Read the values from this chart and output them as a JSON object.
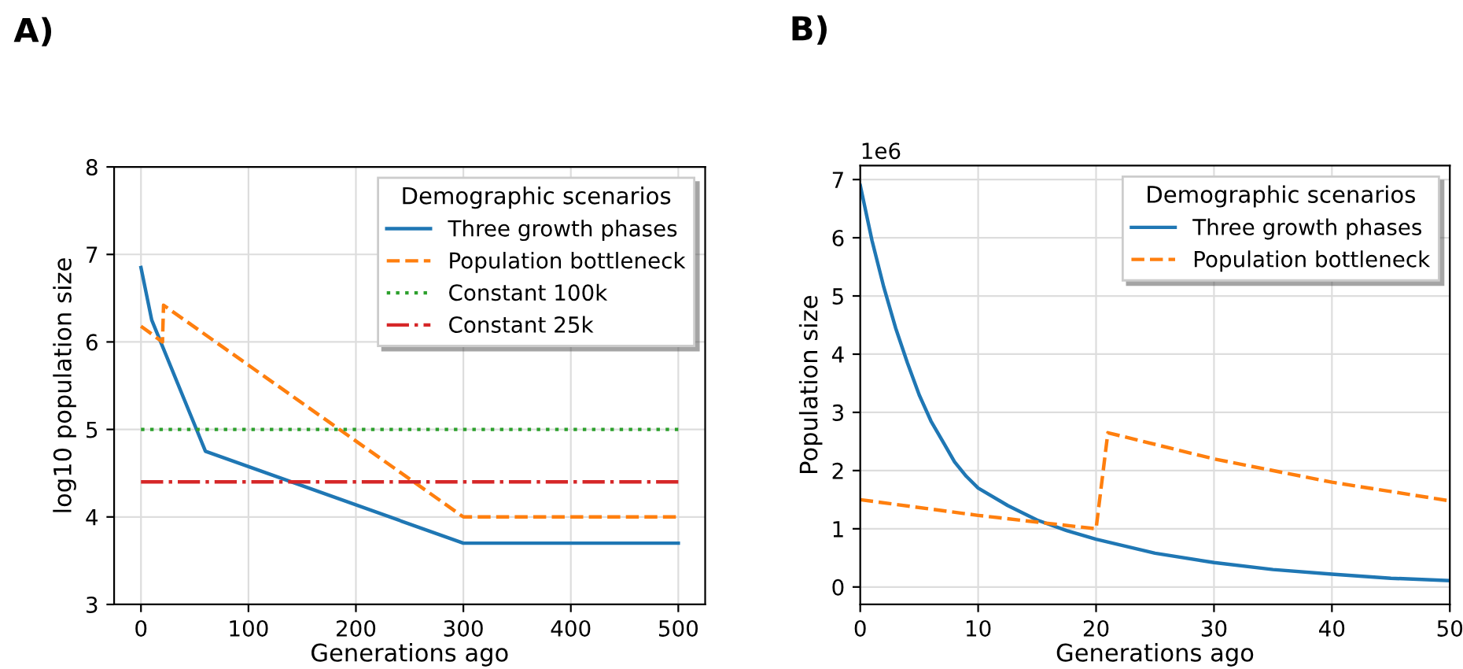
{
  "chart_data": [
    {
      "type": "line",
      "title": "A)",
      "xlabel": "Generations ago",
      "ylabel": "log10 population size",
      "legend_title": "Demographic scenarios",
      "legend": "top right",
      "grid": true,
      "xlim": [
        -25,
        525
      ],
      "xticks": [
        0,
        100,
        200,
        300,
        400,
        500
      ],
      "ylim": [
        3,
        8
      ],
      "yticks": [
        3,
        4,
        5,
        6,
        7,
        8
      ],
      "series": [
        {
          "name": "Three growth phases",
          "color": "#1f77b4",
          "line_style": "solid",
          "x": [
            0,
            10,
            60,
            300,
            500
          ],
          "values": [
            6.85,
            6.25,
            4.75,
            3.7,
            3.7
          ]
        },
        {
          "name": "Population bottleneck",
          "color": "#ff7f0e",
          "line_style": "dashed",
          "x": [
            0,
            20,
            21,
            300,
            500
          ],
          "values": [
            6.18,
            6.0,
            6.42,
            4.0,
            4.0
          ]
        },
        {
          "name": "Constant 100k",
          "color": "#2ca02c",
          "line_style": "dotted",
          "x": [
            0,
            500
          ],
          "values": [
            5.0,
            5.0
          ]
        },
        {
          "name": "Constant 25k",
          "color": "#d62728",
          "line_style": "dashdot",
          "x": [
            0,
            500
          ],
          "values": [
            4.4,
            4.4
          ]
        }
      ]
    },
    {
      "type": "line",
      "title": "B)",
      "xlabel": "Generations ago",
      "ylabel": "Population size",
      "legend_title": "Demographic scenarios",
      "legend": "top right",
      "grid": true,
      "annotations": [
        "1e6"
      ],
      "xlim": [
        0,
        50
      ],
      "xticks": [
        0,
        10,
        20,
        30,
        40,
        50
      ],
      "ylim": [
        -0.3,
        7.24
      ],
      "yticks": [
        0,
        1,
        2,
        3,
        4,
        5,
        6,
        7
      ],
      "series": [
        {
          "name": "Three growth phases",
          "color": "#1f77b4",
          "line_style": "solid",
          "x": [
            0,
            1,
            2,
            3,
            4,
            5,
            6,
            7,
            8,
            9,
            10,
            12.5,
            15,
            17.5,
            20,
            25,
            30,
            35,
            40,
            45,
            50
          ],
          "values": [
            6.9,
            5.95,
            5.15,
            4.45,
            3.85,
            3.3,
            2.85,
            2.5,
            2.15,
            1.9,
            1.7,
            1.4,
            1.15,
            0.97,
            0.82,
            0.58,
            0.42,
            0.3,
            0.22,
            0.15,
            0.11
          ]
        },
        {
          "name": "Population bottleneck",
          "color": "#ff7f0e",
          "line_style": "dashed",
          "x": [
            0,
            10,
            20,
            21,
            30,
            40,
            50
          ],
          "values": [
            1.5,
            1.23,
            1.0,
            2.65,
            2.2,
            1.8,
            1.48
          ]
        }
      ]
    }
  ]
}
